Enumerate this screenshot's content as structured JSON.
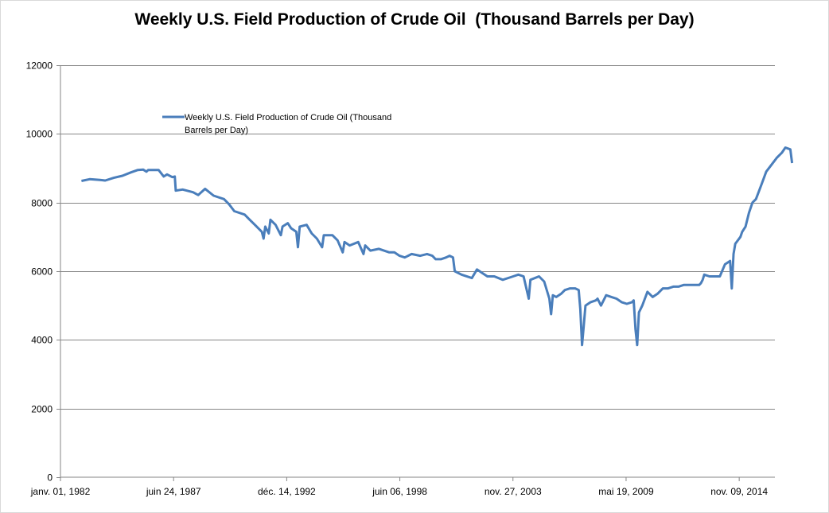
{
  "chart_data": {
    "type": "line",
    "title": "Weekly U.S. Field Production of Crude Oil  (Thousand Barrels per Day)",
    "xlabel": "",
    "ylabel": "",
    "ylim": [
      0,
      12000
    ],
    "yticks": [
      0,
      2000,
      4000,
      6000,
      8000,
      10000,
      12000
    ],
    "xlim": [
      "1982-01-01",
      "2016-08-01"
    ],
    "xticks": [
      {
        "date": "1982-01-01",
        "label": "janv. 01, 1982"
      },
      {
        "date": "1987-06-24",
        "label": "juin 24, 1987"
      },
      {
        "date": "1992-12-14",
        "label": "déc. 14, 1992"
      },
      {
        "date": "1998-06-06",
        "label": "juin 06, 1998"
      },
      {
        "date": "2003-11-27",
        "label": "nov. 27, 2003"
      },
      {
        "date": "2009-05-19",
        "label": "mai 19, 2009"
      },
      {
        "date": "2014-11-09",
        "label": "nov. 09, 2014"
      }
    ],
    "grid": "horizontal",
    "legend_position": "top-left",
    "color": "#4a7ebb",
    "series": [
      {
        "name": "Weekly U.S. Field Production of Crude Oil  (Thousand Barrels per Day)",
        "points": [
          [
            "1983-01-07",
            8630
          ],
          [
            "1983-06-01",
            8680
          ],
          [
            "1983-12-01",
            8660
          ],
          [
            "1984-03-01",
            8640
          ],
          [
            "1984-08-01",
            8720
          ],
          [
            "1985-01-01",
            8780
          ],
          [
            "1985-06-01",
            8880
          ],
          [
            "1985-10-01",
            8950
          ],
          [
            "1986-01-01",
            8960
          ],
          [
            "1986-03-01",
            8900
          ],
          [
            "1986-04-01",
            8950
          ],
          [
            "1986-10-01",
            8950
          ],
          [
            "1987-01-01",
            8760
          ],
          [
            "1987-03-01",
            8820
          ],
          [
            "1987-06-01",
            8740
          ],
          [
            "1987-07-15",
            8760
          ],
          [
            "1987-08-01",
            8350
          ],
          [
            "1987-12-01",
            8380
          ],
          [
            "1988-06-01",
            8300
          ],
          [
            "1988-09-01",
            8220
          ],
          [
            "1989-01-01",
            8400
          ],
          [
            "1989-06-01",
            8200
          ],
          [
            "1989-12-01",
            8100
          ],
          [
            "1990-03-01",
            7950
          ],
          [
            "1990-06-01",
            7750
          ],
          [
            "1990-12-01",
            7650
          ],
          [
            "1991-03-01",
            7500
          ],
          [
            "1991-06-01",
            7350
          ],
          [
            "1991-10-01",
            7150
          ],
          [
            "1991-11-01",
            6950
          ],
          [
            "1991-12-01",
            7300
          ],
          [
            "1992-02-01",
            7100
          ],
          [
            "1992-03-01",
            7500
          ],
          [
            "1992-06-01",
            7350
          ],
          [
            "1992-09-01",
            7050
          ],
          [
            "1992-10-01",
            7300
          ],
          [
            "1993-01-01",
            7400
          ],
          [
            "1993-03-01",
            7250
          ],
          [
            "1993-06-01",
            7150
          ],
          [
            "1993-07-01",
            6700
          ],
          [
            "1993-08-01",
            7300
          ],
          [
            "1993-12-01",
            7350
          ],
          [
            "1994-03-01",
            7100
          ],
          [
            "1994-06-01",
            6950
          ],
          [
            "1994-09-01",
            6700
          ],
          [
            "1994-10-01",
            7050
          ],
          [
            "1995-03-01",
            7050
          ],
          [
            "1995-06-01",
            6900
          ],
          [
            "1995-09-01",
            6550
          ],
          [
            "1995-10-01",
            6850
          ],
          [
            "1996-01-01",
            6750
          ],
          [
            "1996-06-01",
            6850
          ],
          [
            "1996-09-01",
            6500
          ],
          [
            "1996-10-01",
            6750
          ],
          [
            "1997-01-01",
            6600
          ],
          [
            "1997-06-01",
            6650
          ],
          [
            "1997-12-01",
            6550
          ],
          [
            "1998-03-01",
            6550
          ],
          [
            "1998-06-01",
            6450
          ],
          [
            "1998-09-01",
            6400
          ],
          [
            "1999-01-01",
            6500
          ],
          [
            "1999-06-01",
            6450
          ],
          [
            "1999-10-01",
            6500
          ],
          [
            "2000-01-01",
            6450
          ],
          [
            "2000-03-01",
            6350
          ],
          [
            "2000-06-01",
            6350
          ],
          [
            "2000-09-01",
            6400
          ],
          [
            "2000-11-01",
            6450
          ],
          [
            "2001-01-01",
            6400
          ],
          [
            "2001-02-01",
            6000
          ],
          [
            "2001-06-01",
            5900
          ],
          [
            "2001-12-01",
            5800
          ],
          [
            "2002-03-01",
            6050
          ],
          [
            "2002-06-01",
            5950
          ],
          [
            "2002-09-01",
            5850
          ],
          [
            "2003-01-01",
            5850
          ],
          [
            "2003-06-01",
            5750
          ],
          [
            "2003-12-01",
            5850
          ],
          [
            "2004-03-01",
            5900
          ],
          [
            "2004-06-01",
            5850
          ],
          [
            "2004-09-01",
            5200
          ],
          [
            "2004-10-01",
            5750
          ],
          [
            "2005-03-01",
            5850
          ],
          [
            "2005-06-01",
            5700
          ],
          [
            "2005-09-01",
            5200
          ],
          [
            "2005-10-01",
            4750
          ],
          [
            "2005-11-01",
            5300
          ],
          [
            "2006-01-01",
            5250
          ],
          [
            "2006-04-01",
            5350
          ],
          [
            "2006-06-01",
            5450
          ],
          [
            "2006-09-01",
            5500
          ],
          [
            "2006-12-01",
            5500
          ],
          [
            "2007-02-01",
            5450
          ],
          [
            "2007-03-01",
            4900
          ],
          [
            "2007-04-01",
            3850
          ],
          [
            "2007-05-01",
            4400
          ],
          [
            "2007-06-01",
            5000
          ],
          [
            "2007-09-01",
            5100
          ],
          [
            "2007-12-01",
            5150
          ],
          [
            "2008-01-01",
            5200
          ],
          [
            "2008-03-01",
            5000
          ],
          [
            "2008-06-01",
            5300
          ],
          [
            "2008-09-01",
            5250
          ],
          [
            "2008-12-01",
            5200
          ],
          [
            "2009-03-01",
            5100
          ],
          [
            "2009-06-01",
            5050
          ],
          [
            "2009-09-01",
            5100
          ],
          [
            "2009-10-01",
            5150
          ],
          [
            "2009-11-01",
            4300
          ],
          [
            "2009-12-01",
            3850
          ],
          [
            "2010-01-01",
            4800
          ],
          [
            "2010-03-01",
            5000
          ],
          [
            "2010-06-01",
            5400
          ],
          [
            "2010-09-01",
            5250
          ],
          [
            "2010-12-01",
            5350
          ],
          [
            "2011-03-01",
            5500
          ],
          [
            "2011-06-01",
            5500
          ],
          [
            "2011-09-01",
            5550
          ],
          [
            "2011-12-01",
            5550
          ],
          [
            "2012-03-01",
            5600
          ],
          [
            "2012-06-01",
            5600
          ],
          [
            "2012-09-01",
            5600
          ],
          [
            "2012-12-01",
            5600
          ],
          [
            "2013-01-01",
            5650
          ],
          [
            "2013-02-01",
            5750
          ],
          [
            "2013-03-01",
            5900
          ],
          [
            "2013-06-01",
            5850
          ],
          [
            "2013-09-01",
            5850
          ],
          [
            "2013-12-01",
            5850
          ],
          [
            "2014-03-01",
            6200
          ],
          [
            "2014-06-01",
            6300
          ],
          [
            "2014-07-01",
            5500
          ],
          [
            "2014-08-01",
            6500
          ],
          [
            "2014-09-01",
            6800
          ],
          [
            "2014-12-01",
            7000
          ],
          [
            "2015-01-01",
            7150
          ],
          [
            "2015-03-01",
            7300
          ],
          [
            "2015-05-01",
            7700
          ],
          [
            "2015-07-01",
            8000
          ],
          [
            "2015-09-01",
            8100
          ],
          [
            "2015-12-01",
            8500
          ],
          [
            "2016-03-01",
            8900
          ],
          [
            "2016-06-01",
            9100
          ],
          [
            "2016-09-01",
            9300
          ],
          [
            "2016-12-01",
            9450
          ],
          [
            "2017-02-01",
            9600
          ],
          [
            "2017-05-01",
            9550
          ],
          [
            "2017-06-01",
            9150
          ]
        ]
      }
    ]
  }
}
